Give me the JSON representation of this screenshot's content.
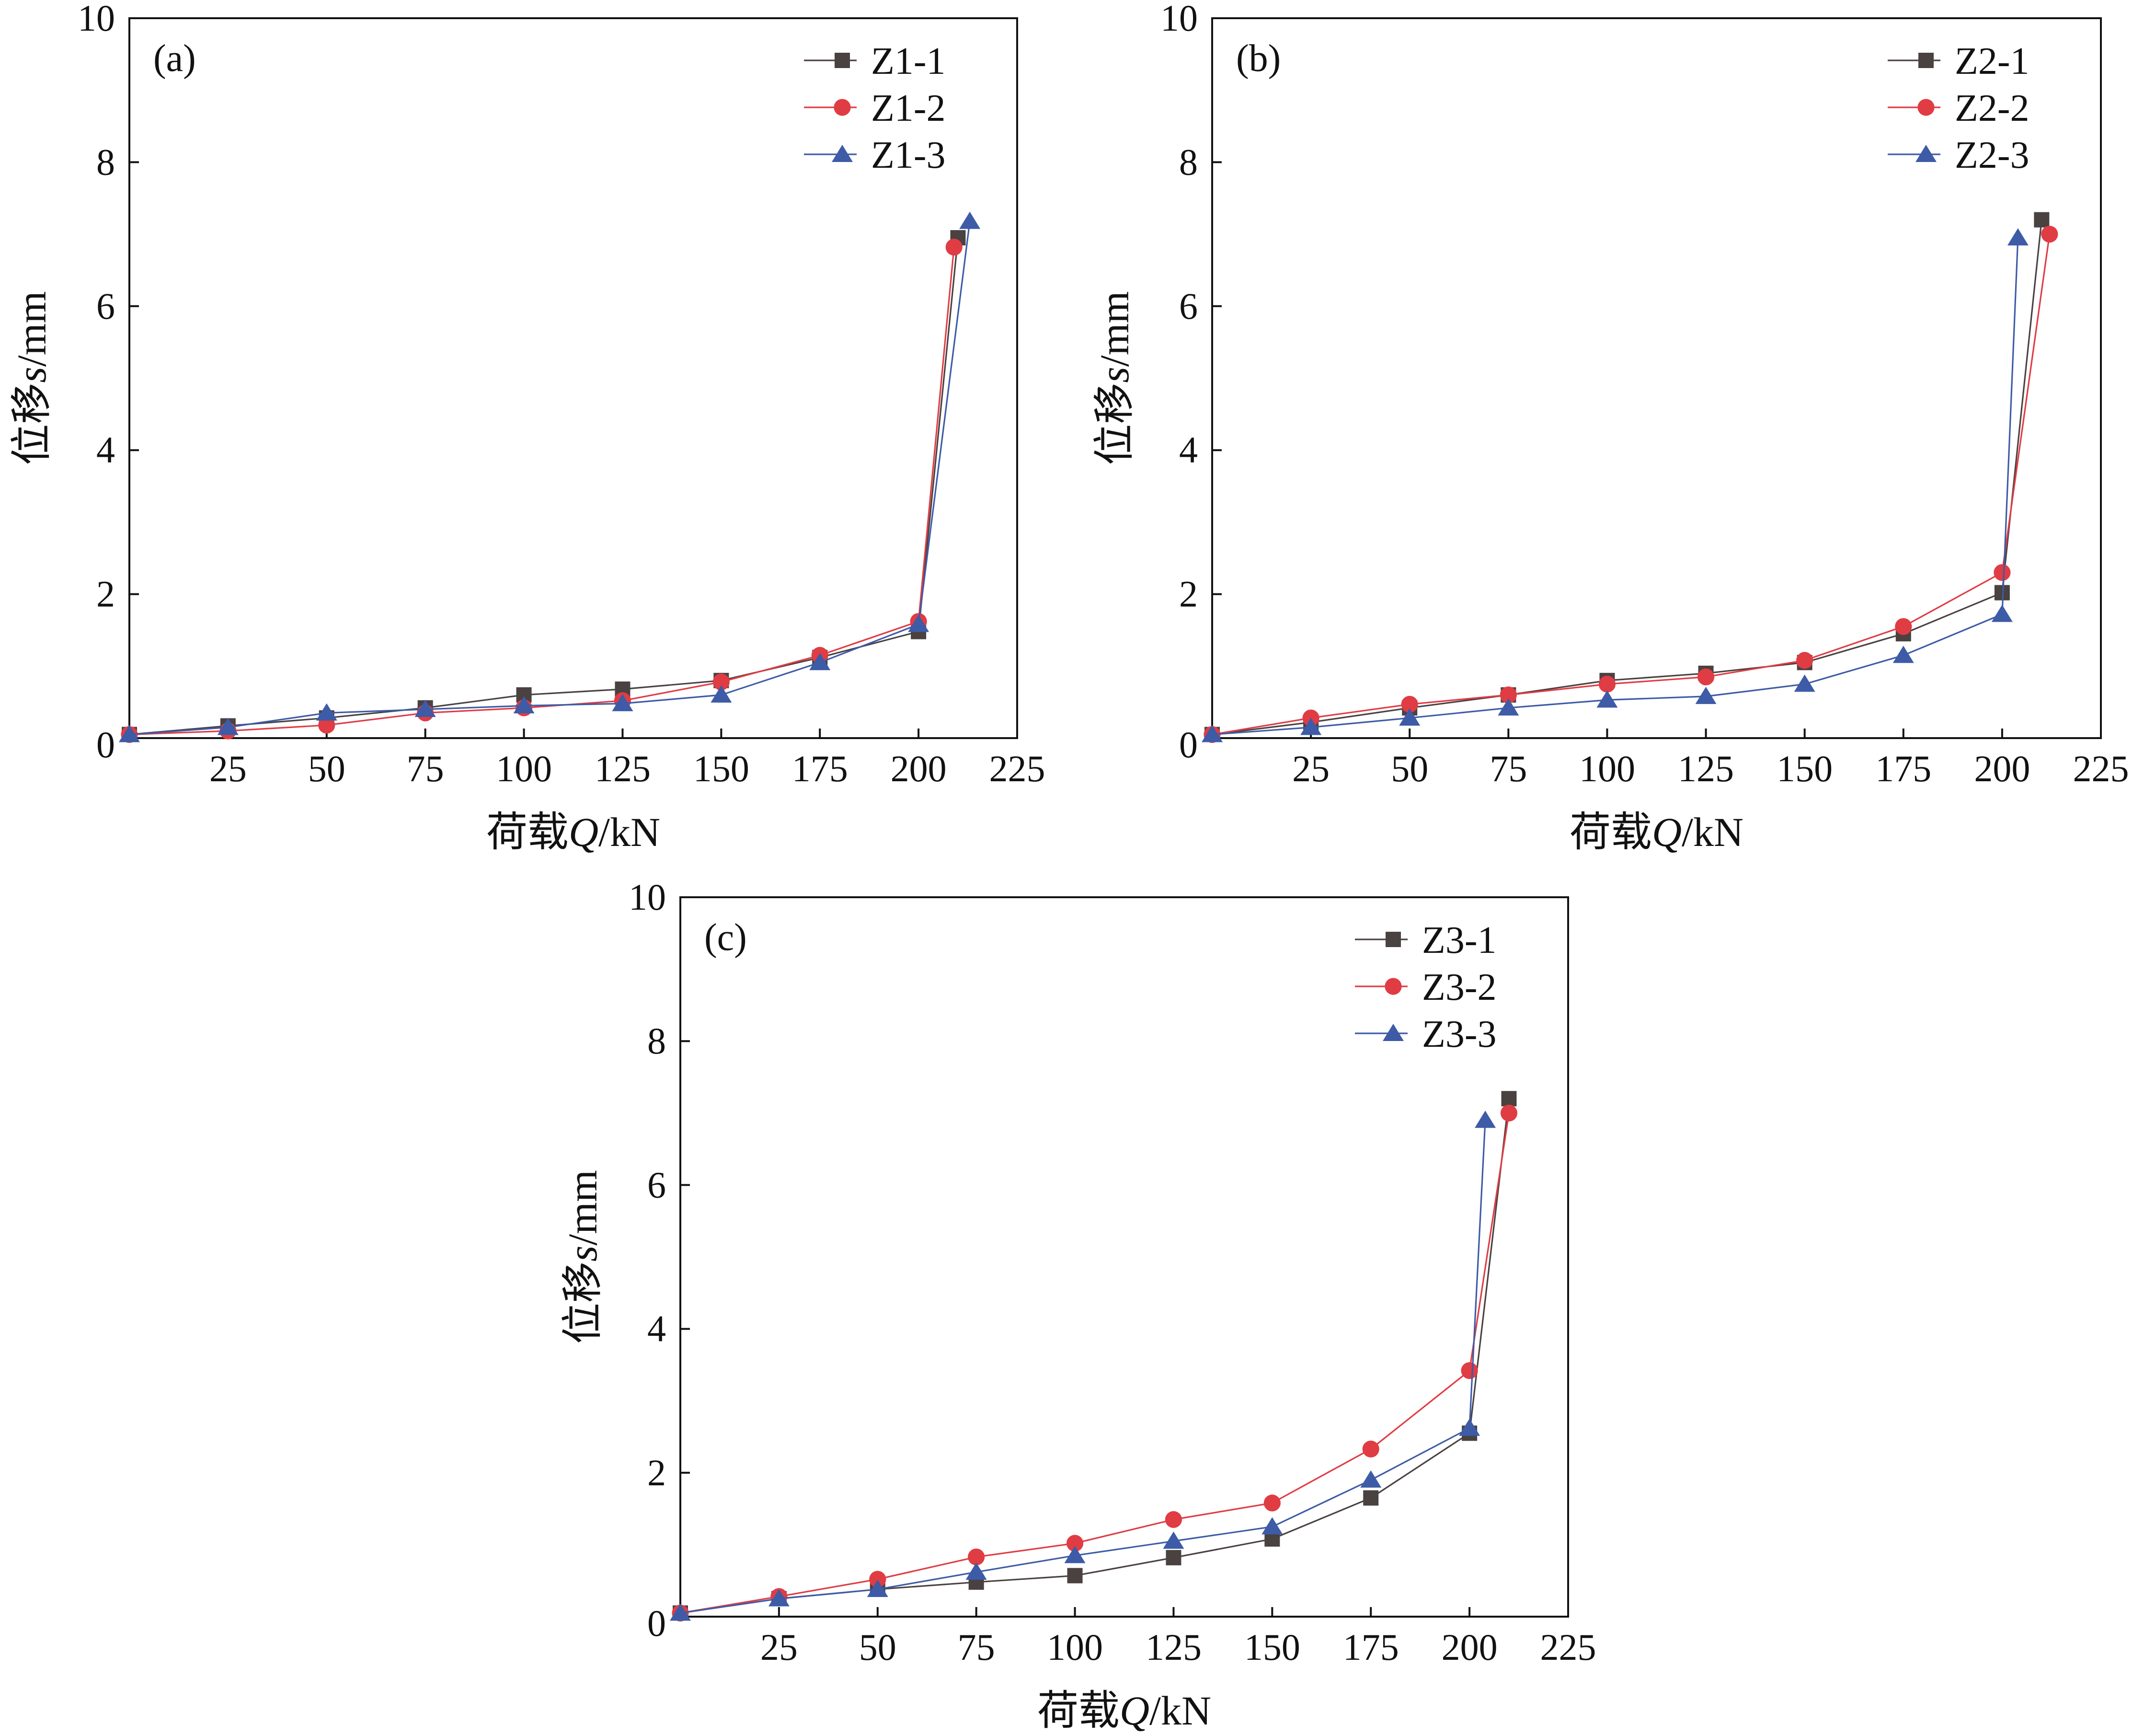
{
  "colors": {
    "series1": "#4a4141",
    "series2": "#e03c44",
    "series3": "#3d5ba6",
    "axis": "#111111"
  },
  "chart_data": [
    {
      "type": "line",
      "panel_label": "(a)",
      "xlabel_main": "荷载",
      "xlabel_var": "Q",
      "xlabel_unit": "/kN",
      "ylabel_main": "位移",
      "ylabel_var": "s",
      "ylabel_unit": "/mm",
      "xlim": [
        0,
        225
      ],
      "ylim": [
        0,
        10
      ],
      "xticks": [
        25,
        50,
        75,
        100,
        125,
        150,
        175,
        200,
        225
      ],
      "yticks": [
        0,
        2,
        4,
        6,
        8,
        10
      ],
      "legend_position": "top-right",
      "series": [
        {
          "name": "Z1-1",
          "marker": "square",
          "x": [
            0,
            25,
            50,
            75,
            100,
            125,
            150,
            175,
            200,
            210
          ],
          "y": [
            0.05,
            0.17,
            0.28,
            0.42,
            0.6,
            0.68,
            0.8,
            1.12,
            1.48,
            6.95
          ]
        },
        {
          "name": "Z1-2",
          "marker": "circle",
          "x": [
            0,
            25,
            50,
            75,
            100,
            125,
            150,
            175,
            200,
            209
          ],
          "y": [
            0.05,
            0.1,
            0.18,
            0.35,
            0.42,
            0.52,
            0.78,
            1.15,
            1.62,
            6.82
          ]
        },
        {
          "name": "Z1-3",
          "marker": "triangle",
          "x": [
            0,
            25,
            50,
            75,
            100,
            125,
            150,
            175,
            200,
            213
          ],
          "y": [
            0.05,
            0.15,
            0.35,
            0.4,
            0.45,
            0.48,
            0.6,
            1.05,
            1.58,
            7.18
          ]
        }
      ]
    },
    {
      "type": "line",
      "panel_label": "(b)",
      "xlabel_main": "荷载",
      "xlabel_var": "Q",
      "xlabel_unit": "/kN",
      "ylabel_main": "位移",
      "ylabel_var": "s",
      "ylabel_unit": "/mm",
      "xlim": [
        0,
        225
      ],
      "ylim": [
        0,
        10
      ],
      "xticks": [
        25,
        50,
        75,
        100,
        125,
        150,
        175,
        200,
        225
      ],
      "yticks": [
        0,
        2,
        4,
        6,
        8,
        10
      ],
      "legend_position": "top-right",
      "series": [
        {
          "name": "Z2-1",
          "marker": "square",
          "x": [
            0,
            25,
            50,
            75,
            100,
            125,
            150,
            175,
            200,
            210
          ],
          "y": [
            0.05,
            0.22,
            0.42,
            0.6,
            0.8,
            0.9,
            1.05,
            1.45,
            2.02,
            7.2
          ]
        },
        {
          "name": "Z2-2",
          "marker": "circle",
          "x": [
            0,
            25,
            50,
            75,
            100,
            125,
            150,
            175,
            200,
            212
          ],
          "y": [
            0.05,
            0.28,
            0.47,
            0.6,
            0.75,
            0.85,
            1.08,
            1.55,
            2.3,
            7.0
          ]
        },
        {
          "name": "Z2-3",
          "marker": "triangle",
          "x": [
            0,
            25,
            50,
            75,
            100,
            125,
            150,
            175,
            200,
            204
          ],
          "y": [
            0.05,
            0.15,
            0.28,
            0.42,
            0.53,
            0.58,
            0.75,
            1.15,
            1.72,
            6.95
          ]
        }
      ]
    },
    {
      "type": "line",
      "panel_label": "(c)",
      "xlabel_main": "荷载",
      "xlabel_var": "Q",
      "xlabel_unit": "/kN",
      "ylabel_main": "位移",
      "ylabel_var": "s",
      "ylabel_unit": "/mm",
      "xlim": [
        0,
        225
      ],
      "ylim": [
        0,
        10
      ],
      "xticks": [
        25,
        50,
        75,
        100,
        125,
        150,
        175,
        200,
        225
      ],
      "yticks": [
        0,
        2,
        4,
        6,
        8,
        10
      ],
      "legend_position": "top-right",
      "series": [
        {
          "name": "Z3-1",
          "marker": "square",
          "x": [
            0,
            25,
            50,
            75,
            100,
            125,
            150,
            175,
            200,
            210
          ],
          "y": [
            0.05,
            0.25,
            0.38,
            0.48,
            0.57,
            0.82,
            1.08,
            1.65,
            2.55,
            7.2
          ]
        },
        {
          "name": "Z3-2",
          "marker": "circle",
          "x": [
            0,
            25,
            50,
            75,
            100,
            125,
            150,
            175,
            200,
            210
          ],
          "y": [
            0.05,
            0.28,
            0.52,
            0.83,
            1.02,
            1.35,
            1.58,
            2.33,
            3.42,
            7.0
          ]
        },
        {
          "name": "Z3-3",
          "marker": "triangle",
          "x": [
            0,
            25,
            50,
            75,
            100,
            125,
            150,
            175,
            200,
            204
          ],
          "y": [
            0.05,
            0.25,
            0.38,
            0.62,
            0.85,
            1.05,
            1.25,
            1.9,
            2.62,
            6.9
          ]
        }
      ]
    }
  ]
}
